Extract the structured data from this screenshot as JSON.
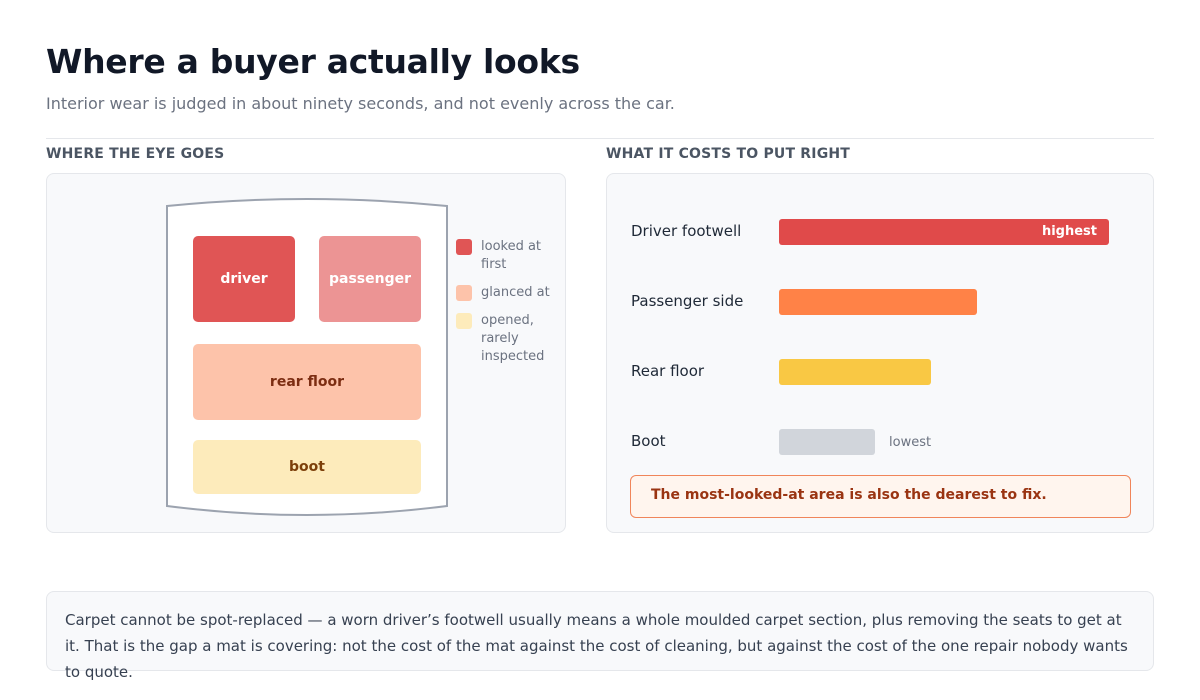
{
  "header": {
    "title": "Where a buyer actually looks",
    "subtitle": "Interior wear is judged in about ninety seconds, and not evenly across the car."
  },
  "left_panel": {
    "label": "WHERE THE EYE GOES",
    "zones": [
      {
        "key": "driver",
        "label": "driver",
        "color": "#e05555"
      },
      {
        "key": "passenger",
        "label": "passenger",
        "color": "#ec9494"
      },
      {
        "key": "rear",
        "label": "rear floor",
        "color": "#fdc3aa"
      },
      {
        "key": "boot",
        "label": "boot",
        "color": "#fdebbb"
      }
    ],
    "legend": [
      {
        "label": "looked at first",
        "color": "#e05555"
      },
      {
        "label": "glanced at",
        "color": "#fdc3aa"
      },
      {
        "label": "opened, rarely inspected",
        "color": "#fdebbb"
      }
    ]
  },
  "right_panel": {
    "label": "WHAT IT COSTS TO PUT RIGHT",
    "callout": "The most-looked-at area is also the dearest to fix."
  },
  "chart_data": {
    "type": "bar",
    "orientation": "horizontal",
    "categories": [
      "Driver footwell",
      "Passenger side",
      "Rear floor",
      "Boot"
    ],
    "values": [
      100,
      60,
      46,
      29
    ],
    "colors": [
      "#e04a4a",
      "#ff8247",
      "#f9c844",
      "#d1d5db"
    ],
    "bar_labels": [
      "highest",
      "",
      "",
      "lowest"
    ],
    "title": "WHAT IT COSTS TO PUT RIGHT",
    "xlabel": "",
    "ylabel": ""
  },
  "footer": {
    "note": "Carpet cannot be spot-replaced — a worn driver’s footwell usually means a whole moulded carpet section, plus removing the seats to get at it. That is the gap a mat is covering: not the cost of the mat against the cost of cleaning, but against the cost of the one repair nobody wants to quote."
  }
}
